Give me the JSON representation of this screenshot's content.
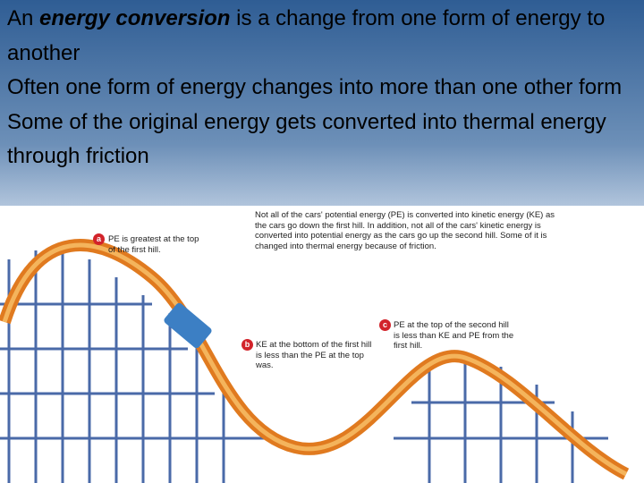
{
  "slide": {
    "bullets": [
      {
        "parts": [
          "An ",
          "energy conversion",
          " is a change from one form of energy to another"
        ]
      },
      "Often one form of energy changes into more than one other form",
      "Some of the original energy gets converted into thermal energy through friction"
    ],
    "figure": {
      "caption": "Not all of the cars' potential energy (PE) is converted into kinetic energy (KE) as the cars go down the first hill. In addition, not all of the cars' kinetic energy is converted into potential energy as the cars go up the second hill. Some of it is changed into thermal energy because of friction.",
      "callouts": [
        {
          "letter": "a",
          "text": "PE is greatest at the top of the first hill."
        },
        {
          "letter": "b",
          "text": "KE at the bottom of the first hill is less than the PE at the top was."
        },
        {
          "letter": "c",
          "text": "PE at the top of the second hill is less than KE and PE from the first hill."
        }
      ]
    }
  }
}
